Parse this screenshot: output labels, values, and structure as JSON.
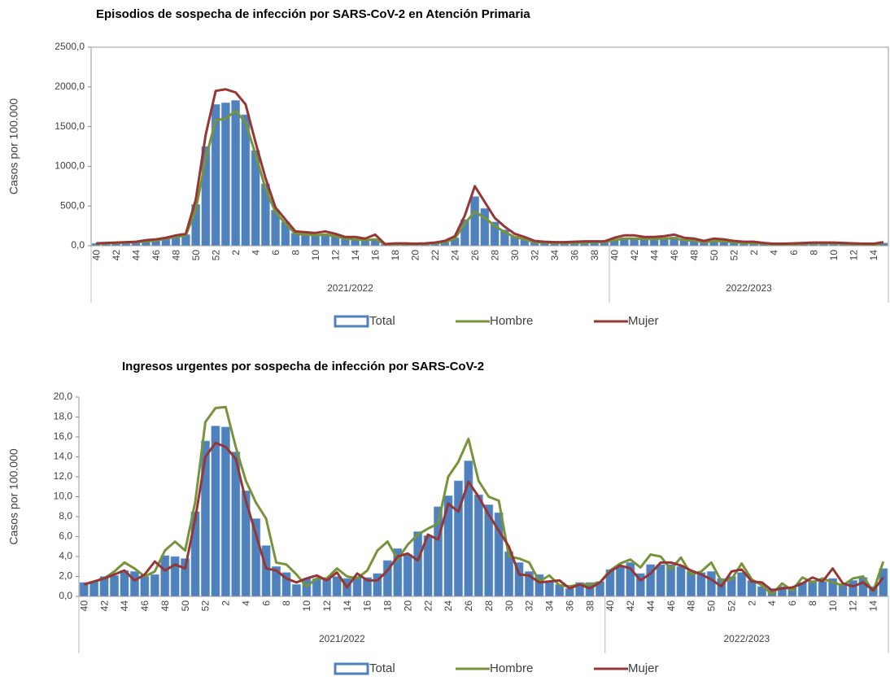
{
  "chart_data": [
    {
      "type": "bar",
      "title": "Episodios de sospecha de infección por SARS-CoV-2 en Atención Primaria",
      "y_label": "Casos por 100.000",
      "frame": true,
      "categories": [
        "40",
        null,
        "42",
        null,
        "44",
        null,
        "46",
        null,
        "48",
        null,
        "50",
        null,
        "52",
        null,
        "2",
        null,
        "4",
        null,
        "6",
        null,
        "8",
        null,
        "10",
        null,
        "12",
        null,
        "14",
        null,
        "16",
        null,
        "18",
        null,
        "20",
        null,
        "22",
        null,
        "24",
        null,
        "26",
        null,
        "28",
        null,
        "30",
        null,
        "32",
        null,
        "34",
        null,
        "36",
        null,
        "38",
        null,
        "40",
        null,
        "42",
        null,
        "44",
        null,
        "46",
        null,
        "48",
        null,
        "50",
        null,
        "52",
        null,
        "2",
        null,
        "4",
        null,
        "6",
        null,
        "8",
        null,
        "10",
        null,
        "12",
        null,
        "14",
        null
      ],
      "groups": [
        "2021/2022",
        "2022/2023"
      ],
      "ylim": [
        0,
        2500
      ],
      "yticks": [
        {
          "value": 0,
          "label": "0,0"
        },
        {
          "value": 500,
          "label": "500,0"
        },
        {
          "value": 1000,
          "label": "1000,0"
        },
        {
          "value": 1500,
          "label": "1500,0"
        },
        {
          "value": 2000,
          "label": "2000,0"
        },
        {
          "value": 2500,
          "label": "2500,0"
        }
      ],
      "series": [
        {
          "name": "Total",
          "type": "bar",
          "color": "#4f81bd",
          "values": [
            30,
            30,
            35,
            40,
            45,
            60,
            70,
            90,
            120,
            140,
            520,
            1250,
            1780,
            1800,
            1830,
            1650,
            1200,
            780,
            450,
            300,
            160,
            150,
            140,
            150,
            130,
            100,
            90,
            80,
            90,
            20,
            25,
            25,
            20,
            25,
            35,
            50,
            100,
            330,
            620,
            470,
            300,
            200,
            120,
            90,
            50,
            45,
            40,
            40,
            40,
            45,
            50,
            50,
            80,
            100,
            100,
            95,
            95,
            100,
            110,
            80,
            75,
            50,
            70,
            60,
            50,
            40,
            40,
            30,
            20,
            20,
            25,
            30,
            35,
            35,
            35,
            30,
            25,
            20,
            20,
            35
          ]
        },
        {
          "name": "Hombre",
          "type": "line",
          "color": "#77933c",
          "values": [
            25,
            30,
            35,
            40,
            45,
            55,
            65,
            90,
            110,
            130,
            450,
            1100,
            1580,
            1600,
            1700,
            1550,
            1150,
            720,
            420,
            280,
            150,
            140,
            130,
            140,
            120,
            90,
            80,
            70,
            80,
            20,
            20,
            25,
            20,
            25,
            30,
            45,
            90,
            280,
            430,
            350,
            250,
            170,
            110,
            80,
            45,
            40,
            35,
            35,
            35,
            40,
            45,
            45,
            70,
            90,
            90,
            85,
            85,
            90,
            95,
            70,
            65,
            45,
            60,
            55,
            45,
            35,
            35,
            25,
            20,
            20,
            20,
            25,
            30,
            30,
            30,
            25,
            20,
            20,
            15,
            30
          ]
        },
        {
          "name": "Mujer",
          "type": "line",
          "color": "#953735",
          "values": [
            30,
            35,
            40,
            45,
            50,
            70,
            80,
            100,
            130,
            150,
            580,
            1400,
            1950,
            1970,
            1930,
            1780,
            1300,
            850,
            480,
            330,
            180,
            170,
            160,
            180,
            150,
            110,
            110,
            90,
            140,
            20,
            30,
            30,
            25,
            30,
            40,
            60,
            120,
            380,
            750,
            550,
            350,
            240,
            150,
            110,
            60,
            50,
            45,
            45,
            50,
            55,
            55,
            55,
            100,
            130,
            130,
            110,
            110,
            120,
            140,
            100,
            90,
            60,
            90,
            80,
            60,
            50,
            50,
            35,
            25,
            25,
            30,
            35,
            40,
            40,
            40,
            35,
            30,
            25,
            25,
            45
          ]
        }
      ]
    },
    {
      "type": "bar",
      "title": "Ingresos urgentes por sospecha de infección por SARS-CoV-2",
      "y_label": "Casos por 100.000",
      "frame": false,
      "categories": [
        "40",
        null,
        "42",
        null,
        "44",
        null,
        "46",
        null,
        "48",
        null,
        "50",
        null,
        "52",
        null,
        "2",
        null,
        "4",
        null,
        "6",
        null,
        "8",
        null,
        "10",
        null,
        "12",
        null,
        "14",
        null,
        "16",
        null,
        "18",
        null,
        "20",
        null,
        "22",
        null,
        "24",
        null,
        "26",
        null,
        "28",
        null,
        "30",
        null,
        "32",
        null,
        "34",
        null,
        "36",
        null,
        "38",
        null,
        "40",
        null,
        "42",
        null,
        "44",
        null,
        "46",
        null,
        "48",
        null,
        "50",
        null,
        "52",
        null,
        "2",
        null,
        "4",
        null,
        "6",
        null,
        "8",
        null,
        "10",
        null,
        "12",
        null,
        "14",
        null
      ],
      "groups": [
        "2021/2022",
        "2022/2023"
      ],
      "ylim": [
        0,
        20
      ],
      "yticks": [
        {
          "value": 0,
          "label": "0,0"
        },
        {
          "value": 2,
          "label": "2,0"
        },
        {
          "value": 4,
          "label": "4,0"
        },
        {
          "value": 6,
          "label": "6,0"
        },
        {
          "value": 8,
          "label": "8,0"
        },
        {
          "value": 10,
          "label": "10,0"
        },
        {
          "value": 12,
          "label": "12,0"
        },
        {
          "value": 14,
          "label": "14,0"
        },
        {
          "value": 16,
          "label": "16,0"
        },
        {
          "value": 18,
          "label": "18,0"
        },
        {
          "value": 20,
          "label": "20,0"
        }
      ],
      "series": [
        {
          "name": "Total",
          "type": "bar",
          "color": "#4f81bd",
          "values": [
            1.4,
            1.5,
            2.0,
            2.1,
            2.6,
            2.5,
            2.0,
            2.2,
            4.1,
            4.0,
            3.8,
            8.5,
            15.6,
            17.1,
            17.0,
            14.5,
            10.6,
            7.8,
            5.1,
            3.0,
            2.4,
            1.2,
            1.8,
            1.8,
            1.8,
            2.0,
            1.8,
            2.0,
            1.9,
            2.3,
            3.6,
            4.8,
            4.2,
            6.5,
            6.1,
            9.0,
            10.1,
            11.6,
            13.6,
            10.2,
            9.2,
            8.4,
            4.5,
            3.4,
            2.5,
            2.2,
            1.5,
            1.2,
            0.8,
            1.4,
            1.4,
            1.5,
            2.7,
            3.0,
            3.4,
            2.3,
            3.2,
            3.2,
            3.2,
            3.0,
            2.5,
            2.4,
            2.5,
            1.8,
            2.0,
            2.4,
            1.6,
            1.0,
            0.8,
            1.0,
            0.9,
            1.4,
            1.6,
            1.5,
            1.8,
            1.2,
            1.6,
            1.9,
            1.0,
            2.8
          ]
        },
        {
          "name": "Hombre",
          "type": "line",
          "color": "#77933c",
          "values": [
            1.2,
            1.5,
            1.8,
            2.5,
            3.4,
            2.8,
            2.0,
            2.5,
            4.6,
            5.5,
            4.6,
            9.5,
            17.5,
            18.9,
            19.0,
            15.0,
            11.6,
            9.4,
            7.8,
            3.4,
            3.2,
            2.2,
            1.0,
            1.8,
            1.8,
            2.8,
            2.0,
            1.8,
            2.6,
            4.6,
            5.5,
            3.7,
            5.2,
            6.2,
            6.8,
            7.3,
            12.0,
            13.5,
            15.8,
            11.6,
            10.0,
            9.6,
            4.0,
            3.8,
            3.4,
            1.5,
            2.1,
            1.1,
            1.0,
            1.2,
            1.2,
            1.4,
            2.6,
            3.3,
            3.7,
            2.9,
            4.2,
            4.0,
            2.7,
            3.9,
            2.2,
            2.5,
            3.4,
            1.5,
            1.7,
            3.3,
            1.7,
            1.1,
            0.2,
            1.3,
            0.6,
            1.9,
            1.4,
            1.8,
            1.4,
            1.1,
            1.8,
            2.0,
            0.5,
            3.5
          ]
        },
        {
          "name": "Mujer",
          "type": "line",
          "color": "#953735",
          "values": [
            1.2,
            1.5,
            1.8,
            2.2,
            2.6,
            1.6,
            2.2,
            3.5,
            2.6,
            3.2,
            2.8,
            7.8,
            14.0,
            15.4,
            15.0,
            13.8,
            9.6,
            6.2,
            2.8,
            2.6,
            1.8,
            1.4,
            1.8,
            2.1,
            1.6,
            2.4,
            0.9,
            2.3,
            1.6,
            1.6,
            2.6,
            4.0,
            4.3,
            3.6,
            6.2,
            5.7,
            9.3,
            8.5,
            11.5,
            10.0,
            8.2,
            6.6,
            5.0,
            2.2,
            2.1,
            1.4,
            1.5,
            1.6,
            0.8,
            1.2,
            0.8,
            1.4,
            2.5,
            3.1,
            2.8,
            1.6,
            2.3,
            3.4,
            3.4,
            3.1,
            2.6,
            2.2,
            1.7,
            1.0,
            2.5,
            2.7,
            1.5,
            1.4,
            0.6,
            0.8,
            0.9,
            1.3,
            1.9,
            1.5,
            2.8,
            1.3,
            1.0,
            1.4,
            0.6,
            1.9
          ]
        }
      ]
    }
  ]
}
